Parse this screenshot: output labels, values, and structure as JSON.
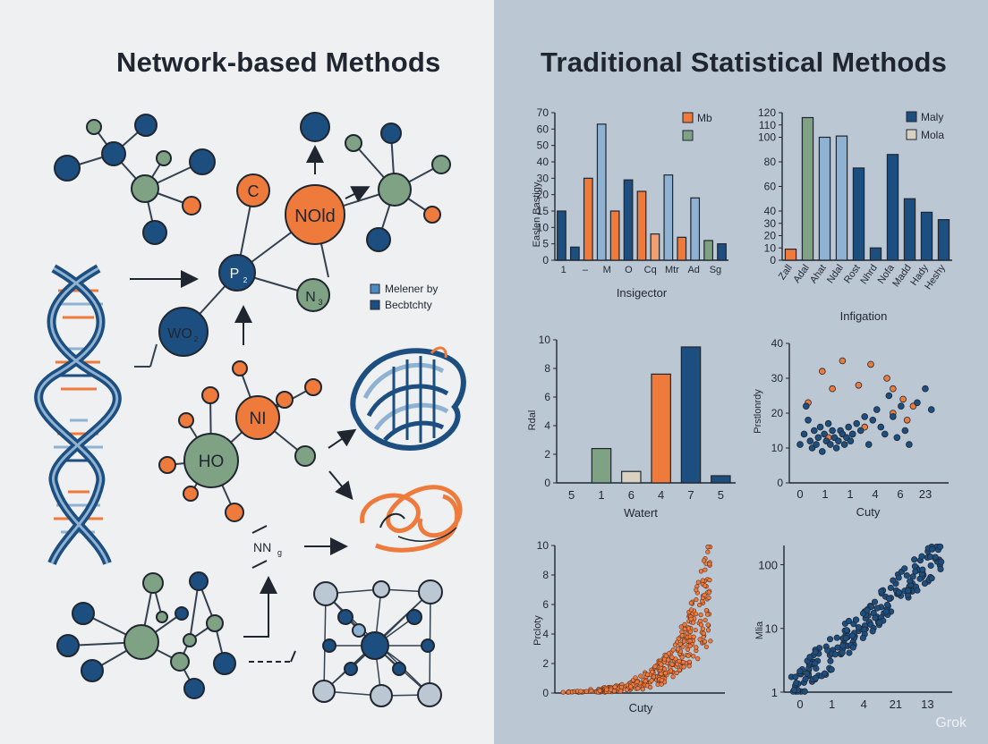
{
  "left_title": "Network-based Methods",
  "right_title": "Traditional Statistical Methods",
  "colors": {
    "navy": "#1d4e80",
    "orange": "#ee7a3c",
    "green": "#7fa184",
    "light_blue": "#8fb2d2",
    "beige": "#d9d2c2"
  },
  "network": {
    "node_labels": {
      "c": "C",
      "nold": "NOld",
      "p": "P",
      "p_sub": "2",
      "n": "N",
      "n_sub": "3",
      "wo": "WO",
      "wo_sub": "2",
      "ni": "NI",
      "ho": "HO",
      "nn": "NN",
      "nn_sub": "g"
    },
    "legend": [
      {
        "label": "Melener by",
        "color": "#4e8bc2"
      },
      {
        "label": "Becbtchty",
        "color": "#1d4e80"
      }
    ]
  },
  "watermark": "Grok",
  "chart_data": [
    {
      "type": "bar",
      "ylabel": "Easlen Bastigy",
      "xlabel": "Insigector",
      "ylim": [
        0,
        70
      ],
      "yticks": [
        0,
        5,
        10,
        15,
        20,
        30,
        40,
        50,
        60,
        70
      ],
      "tick_labels": [
        "1",
        "–",
        "M",
        "O",
        "Cq",
        "Mtr",
        "Ad",
        "Sg"
      ],
      "legend": [
        {
          "name": "Mb",
          "color": "#ee7a3c"
        },
        {
          "name": "",
          "color": "#7fa184"
        }
      ],
      "bars": [
        {
          "value": 15,
          "color": "#1d4e80"
        },
        {
          "value": 4,
          "color": "#1d4e80"
        },
        {
          "value": 30,
          "color": "#ee7a3c"
        },
        {
          "value": 63,
          "color": "#8fb2d2"
        },
        {
          "value": 15,
          "color": "#ee7a3c"
        },
        {
          "value": 29,
          "color": "#1d4e80"
        },
        {
          "value": 22,
          "color": "#ee7a3c"
        },
        {
          "value": 8,
          "color": "#f0a070"
        },
        {
          "value": 32,
          "color": "#8fb2d2"
        },
        {
          "value": 7,
          "color": "#ee7a3c"
        },
        {
          "value": 19,
          "color": "#8fb2d2"
        },
        {
          "value": 6,
          "color": "#7fa184"
        },
        {
          "value": 5,
          "color": "#1d4e80"
        }
      ]
    },
    {
      "type": "bar",
      "ylabel": "",
      "xlabel": "Infigation",
      "ylim": [
        0,
        120
      ],
      "yticks": [
        0,
        10,
        20,
        30,
        40,
        60,
        80,
        100,
        110,
        120
      ],
      "categories": [
        "Zall",
        "Adal",
        "Ahat",
        "Ndal",
        "Rost",
        "Nhrd",
        "Nofa",
        "Madd",
        "Hady",
        "Heshy"
      ],
      "legend": [
        {
          "name": "Maly",
          "color": "#1d4e80"
        },
        {
          "name": "Mola",
          "color": "#d9d2c2"
        }
      ],
      "bars": [
        {
          "value": 9,
          "color": "#ee7a3c"
        },
        {
          "value": 116,
          "color": "#7fa184"
        },
        {
          "value": 100,
          "color": "#8fb2d2"
        },
        {
          "value": 101,
          "color": "#8fb2d2"
        },
        {
          "value": 75,
          "color": "#1d4e80"
        },
        {
          "value": 10,
          "color": "#1d4e80"
        },
        {
          "value": 86,
          "color": "#1d4e80"
        },
        {
          "value": 50,
          "color": "#1d4e80"
        },
        {
          "value": 39,
          "color": "#1d4e80"
        },
        {
          "value": 33,
          "color": "#1d4e80"
        }
      ]
    },
    {
      "type": "bar",
      "ylabel": "Rdal",
      "xlabel": "Watert",
      "ylim": [
        0,
        10
      ],
      "yticks": [
        0,
        2,
        4,
        6,
        8,
        10
      ],
      "categories": [
        "5",
        "1",
        "6",
        "4",
        "7",
        "5"
      ],
      "bars": [
        {
          "value": 0,
          "color": "#1d4e80"
        },
        {
          "value": 2.4,
          "color": "#7fa184"
        },
        {
          "value": 0.8,
          "color": "#d9d2c2"
        },
        {
          "value": 7.6,
          "color": "#ee7a3c"
        },
        {
          "value": 9.5,
          "color": "#1d4e80"
        },
        {
          "value": 0.5,
          "color": "#1d4e80"
        }
      ]
    },
    {
      "type": "scatter",
      "ylabel": "Prstlonrdy",
      "xlabel": "Cuty",
      "ylim": [
        0,
        40
      ],
      "yticks": [
        0,
        10,
        20,
        30,
        40
      ],
      "xticks": [
        "0",
        "1",
        "1",
        "4",
        "6",
        "23"
      ],
      "series": [
        {
          "name": "orange",
          "color": "#ee7a3c",
          "points": [
            [
              1.1,
              32
            ],
            [
              0.4,
              23
            ],
            [
              1.6,
              27
            ],
            [
              2.1,
              35
            ],
            [
              2.9,
              28
            ],
            [
              3.5,
              34
            ],
            [
              4.3,
              30
            ],
            [
              4.6,
              27
            ],
            [
              5.3,
              18
            ],
            [
              5.6,
              22
            ],
            [
              3.2,
              16
            ],
            [
              1.4,
              13
            ],
            [
              2.6,
              14
            ],
            [
              4.6,
              20
            ],
            [
              5.1,
              24
            ]
          ]
        },
        {
          "name": "navy",
          "color": "#1d4e80",
          "points": [
            [
              0,
              11
            ],
            [
              0.2,
              14
            ],
            [
              0.4,
              18
            ],
            [
              0.5,
              12
            ],
            [
              0.6,
              10
            ],
            [
              0.7,
              15
            ],
            [
              0.8,
              11
            ],
            [
              0.9,
              13
            ],
            [
              1.0,
              16
            ],
            [
              1.1,
              9
            ],
            [
              1.2,
              14
            ],
            [
              1.3,
              12
            ],
            [
              1.4,
              17
            ],
            [
              1.5,
              11
            ],
            [
              1.6,
              15
            ],
            [
              1.7,
              13
            ],
            [
              1.8,
              10
            ],
            [
              1.9,
              12
            ],
            [
              2.0,
              15
            ],
            [
              2.1,
              14
            ],
            [
              2.2,
              11
            ],
            [
              2.3,
              13
            ],
            [
              2.4,
              16
            ],
            [
              2.5,
              12
            ],
            [
              2.6,
              14
            ],
            [
              2.8,
              17
            ],
            [
              3.0,
              15
            ],
            [
              3.2,
              19
            ],
            [
              3.4,
              11
            ],
            [
              3.6,
              18
            ],
            [
              3.8,
              21
            ],
            [
              4.0,
              16
            ],
            [
              4.2,
              14
            ],
            [
              4.4,
              25
            ],
            [
              4.6,
              19
            ],
            [
              4.8,
              13
            ],
            [
              5.0,
              22
            ],
            [
              5.2,
              15
            ],
            [
              5.4,
              11
            ],
            [
              5.8,
              23
            ],
            [
              6.2,
              27
            ],
            [
              6.5,
              21
            ],
            [
              0.3,
              22
            ]
          ]
        }
      ]
    },
    {
      "type": "scatter",
      "ylabel": "Prcloty",
      "xlabel": "Cuty",
      "ylim": [
        0,
        10
      ],
      "yticks": [
        0,
        2,
        4,
        6,
        8,
        10
      ],
      "point_count": 380,
      "trend": "exponential",
      "color": "#ee7a3c",
      "edge_color": "#5a3020"
    },
    {
      "type": "scatter",
      "ylabel": "Mlia",
      "xlabel": "",
      "yscale": "log",
      "ylim": [
        1,
        200
      ],
      "yticks": [
        1,
        10,
        100
      ],
      "xticks": [
        "0",
        "1",
        "4",
        "21",
        "13"
      ],
      "point_count": 210,
      "trend": "log-linear",
      "color": "#1d4e80"
    }
  ]
}
